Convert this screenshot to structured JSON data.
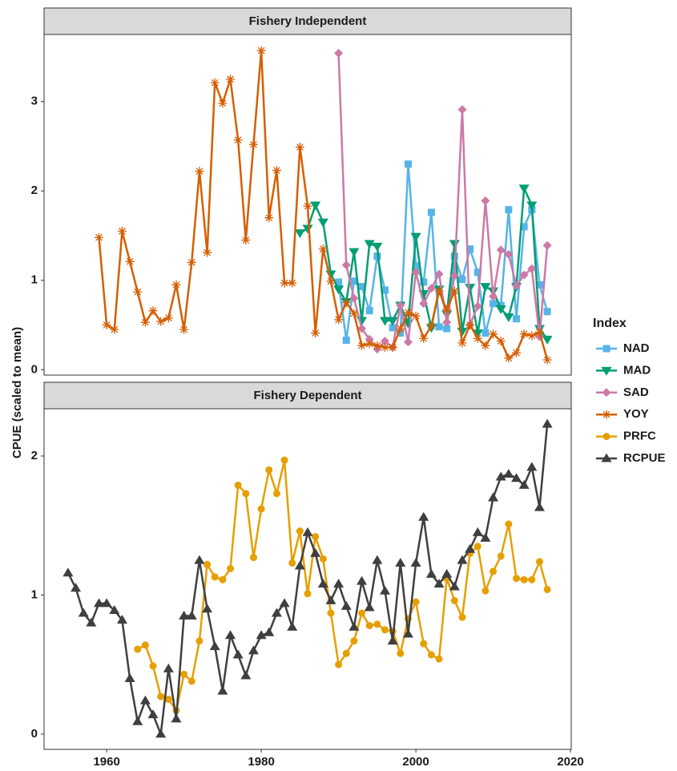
{
  "ylabel": "CPUE (scaled to mean)",
  "legend_title": "Index",
  "chart_data": [
    {
      "type": "line",
      "title": "Fishery Independent",
      "x": [
        1959,
        1960,
        1961,
        1962,
        1963,
        1964,
        1965,
        1966,
        1967,
        1968,
        1969,
        1970,
        1971,
        1972,
        1973,
        1974,
        1975,
        1976,
        1977,
        1978,
        1979,
        1980,
        1981,
        1982,
        1983,
        1984,
        1985,
        1986,
        1987,
        1988,
        1989,
        1990,
        1991,
        1992,
        1993,
        1994,
        1995,
        1996,
        1997,
        1998,
        1999,
        2000,
        2001,
        2002,
        2003,
        2004,
        2005,
        2006,
        2007,
        2008,
        2009,
        2010,
        2011,
        2012,
        2013,
        2014,
        2015,
        2016,
        2017
      ],
      "xlim": [
        1951.9,
        2020.1
      ],
      "ylim": [
        -0.06,
        3.75
      ],
      "yticks": [
        0,
        1,
        2,
        3
      ],
      "series": [
        {
          "name": "NAD",
          "color": "#56B4E9",
          "marker": "square",
          "values": [
            null,
            null,
            null,
            null,
            null,
            null,
            null,
            null,
            null,
            null,
            null,
            null,
            null,
            null,
            null,
            null,
            null,
            null,
            null,
            null,
            null,
            null,
            null,
            null,
            null,
            null,
            null,
            null,
            null,
            null,
            null,
            0.98,
            0.33,
            0.99,
            0.93,
            0.66,
            1.27,
            0.89,
            0.47,
            0.41,
            2.3,
            1.16,
            0.98,
            1.76,
            0.48,
            0.46,
            1.27,
            1.01,
            1.35,
            1.09,
            0.41,
            0.74,
            0.72,
            1.79,
            0.57,
            1.6,
            1.79,
            0.95,
            0.65
          ]
        },
        {
          "name": "MAD",
          "color": "#009E73",
          "marker": "triangle-down",
          "values": [
            null,
            null,
            null,
            null,
            null,
            null,
            null,
            null,
            null,
            null,
            null,
            null,
            null,
            null,
            null,
            null,
            null,
            null,
            null,
            null,
            null,
            null,
            null,
            null,
            null,
            null,
            1.53,
            1.58,
            1.84,
            1.65,
            1.07,
            0.9,
            0.76,
            1.32,
            0.55,
            1.41,
            1.38,
            0.55,
            0.55,
            0.72,
            0.52,
            1.49,
            0.85,
            0.47,
            0.9,
            0.62,
            1.41,
            0.43,
            0.92,
            0.41,
            0.93,
            0.88,
            0.68,
            0.59,
            0.93,
            2.03,
            1.84,
            0.46,
            0.34
          ]
        },
        {
          "name": "SAD",
          "color": "#CC79A7",
          "marker": "diamond",
          "values": [
            null,
            null,
            null,
            null,
            null,
            null,
            null,
            null,
            null,
            null,
            null,
            null,
            null,
            null,
            null,
            null,
            null,
            null,
            null,
            null,
            null,
            null,
            null,
            null,
            null,
            null,
            null,
            null,
            null,
            null,
            null,
            3.54,
            1.17,
            0.8,
            0.46,
            0.34,
            0.23,
            0.32,
            0.25,
            0.72,
            0.31,
            1.09,
            0.74,
            0.91,
            1.07,
            0.53,
            1.05,
            2.91,
            0.5,
            0.71,
            1.89,
            0.82,
            1.34,
            1.29,
            0.94,
            1.06,
            1.13,
            0.37,
            1.39
          ]
        },
        {
          "name": "YOY",
          "color": "#D55E00",
          "marker": "asterisk",
          "values": [
            1.48,
            0.5,
            0.45,
            1.55,
            1.21,
            0.87,
            0.53,
            0.66,
            0.54,
            0.58,
            0.95,
            0.45,
            1.2,
            2.22,
            1.31,
            3.21,
            2.98,
            3.25,
            2.57,
            1.45,
            2.52,
            3.57,
            1.7,
            2.23,
            0.97,
            0.97,
            2.49,
            1.83,
            0.41,
            1.35,
            0.99,
            0.56,
            0.75,
            0.63,
            0.27,
            0.29,
            0.27,
            0.25,
            0.25,
            0.46,
            0.64,
            0.6,
            0.35,
            0.49,
            0.88,
            0.67,
            0.88,
            0.3,
            0.5,
            0.35,
            0.27,
            0.4,
            0.32,
            0.13,
            0.19,
            0.4,
            0.38,
            0.42,
            0.11
          ]
        }
      ]
    },
    {
      "type": "line",
      "title": "Fishery Dependent",
      "x": [
        1955,
        1956,
        1957,
        1958,
        1959,
        1960,
        1961,
        1962,
        1963,
        1964,
        1965,
        1966,
        1967,
        1968,
        1969,
        1970,
        1971,
        1972,
        1973,
        1974,
        1975,
        1976,
        1977,
        1978,
        1979,
        1980,
        1981,
        1982,
        1983,
        1984,
        1985,
        1986,
        1987,
        1988,
        1989,
        1990,
        1991,
        1992,
        1993,
        1994,
        1995,
        1996,
        1997,
        1998,
        1999,
        2000,
        2001,
        2002,
        2003,
        2004,
        2005,
        2006,
        2007,
        2008,
        2009,
        2010,
        2011,
        2012,
        2013,
        2014,
        2015,
        2016,
        2017
      ],
      "xlim": [
        1951.9,
        2020.1
      ],
      "xticks": [
        1960,
        1980,
        2000,
        2020
      ],
      "ylim": [
        -0.11,
        2.34
      ],
      "yticks": [
        0,
        1,
        2
      ],
      "series": [
        {
          "name": "PRFC",
          "color": "#E69F00",
          "marker": "circle",
          "values": [
            null,
            null,
            null,
            null,
            null,
            null,
            null,
            null,
            null,
            0.61,
            0.64,
            0.49,
            0.27,
            0.25,
            0.17,
            0.43,
            0.38,
            0.67,
            1.22,
            1.13,
            1.11,
            1.19,
            1.79,
            1.73,
            1.27,
            1.62,
            1.9,
            1.73,
            1.97,
            1.23,
            1.46,
            1.01,
            1.42,
            1.26,
            0.87,
            0.5,
            0.58,
            0.67,
            0.87,
            0.78,
            0.79,
            0.75,
            0.74,
            0.58,
            0.83,
            0.95,
            0.65,
            0.57,
            0.54,
            1.12,
            0.96,
            0.84,
            1.3,
            1.35,
            1.03,
            1.17,
            1.28,
            1.51,
            1.12,
            1.11,
            1.11,
            1.24,
            1.04
          ]
        },
        {
          "name": "RCPUE",
          "color": "#3F3F3F",
          "marker": "triangle-up",
          "values": [
            1.16,
            1.05,
            0.87,
            0.8,
            0.94,
            0.94,
            0.89,
            0.82,
            0.4,
            0.09,
            0.24,
            0.14,
            0.0,
            0.47,
            0.11,
            0.85,
            0.85,
            1.25,
            0.9,
            0.63,
            0.31,
            0.71,
            0.57,
            0.42,
            0.6,
            0.71,
            0.73,
            0.87,
            0.94,
            0.77,
            1.21,
            1.45,
            1.3,
            1.08,
            0.96,
            1.08,
            0.92,
            0.77,
            1.1,
            0.91,
            1.25,
            1.03,
            0.67,
            1.23,
            0.72,
            1.23,
            1.56,
            1.15,
            1.08,
            1.15,
            1.06,
            1.25,
            1.33,
            1.45,
            1.41,
            1.7,
            1.85,
            1.87,
            1.84,
            1.79,
            1.92,
            1.63,
            2.23
          ]
        }
      ]
    }
  ]
}
